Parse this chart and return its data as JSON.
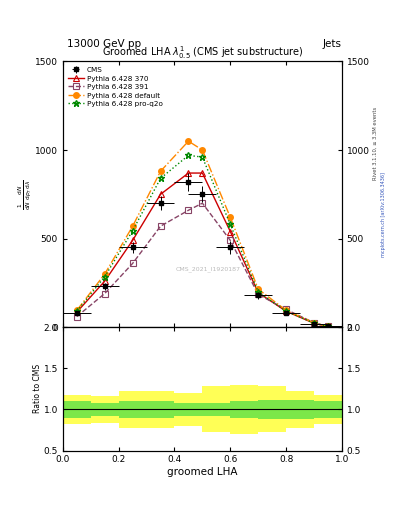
{
  "title": "Groomed LHA $\\lambda^{1}_{0.5}$ (CMS jet substructure)",
  "header_left": "13000 GeV pp",
  "header_right": "Jets",
  "xlabel": "groomed LHA",
  "ylabel_ratio": "Ratio to CMS",
  "watermark": "CMS_2021_I1920187",
  "rivet_label": "Rivet 3.1.10, ≥ 3.3M events",
  "mcplots_label": "mcplots.cern.ch [arXiv:1306.3436]",
  "x_data": [
    0.05,
    0.15,
    0.25,
    0.35,
    0.45,
    0.5,
    0.6,
    0.7,
    0.8,
    0.9,
    0.95
  ],
  "cms_data": [
    80,
    230,
    450,
    700,
    820,
    750,
    450,
    180,
    80,
    20,
    4
  ],
  "cms_xerr": 0.05,
  "cms_yerr": [
    10,
    20,
    30,
    40,
    50,
    45,
    35,
    20,
    10,
    5,
    2
  ],
  "pythia_370": [
    85,
    260,
    490,
    750,
    870,
    870,
    540,
    195,
    90,
    22,
    4
  ],
  "pythia_391": [
    60,
    190,
    360,
    570,
    660,
    700,
    490,
    185,
    100,
    25,
    4
  ],
  "pythia_default": [
    95,
    300,
    570,
    880,
    1050,
    1000,
    620,
    215,
    95,
    25,
    4
  ],
  "pythia_proq2o": [
    90,
    285,
    545,
    840,
    970,
    960,
    580,
    200,
    90,
    23,
    4
  ],
  "ratio_x_edges": [
    0.0,
    0.1,
    0.2,
    0.3,
    0.4,
    0.5,
    0.6,
    0.7,
    0.8,
    0.9,
    1.0
  ],
  "ratio_green_low": [
    0.9,
    0.92,
    0.9,
    0.9,
    0.92,
    0.92,
    0.9,
    0.88,
    0.88,
    0.9
  ],
  "ratio_green_high": [
    1.1,
    1.08,
    1.1,
    1.1,
    1.08,
    1.08,
    1.1,
    1.12,
    1.12,
    1.1
  ],
  "ratio_yellow_low": [
    0.82,
    0.84,
    0.78,
    0.78,
    0.8,
    0.72,
    0.7,
    0.72,
    0.78,
    0.82
  ],
  "ratio_yellow_high": [
    1.18,
    1.16,
    1.22,
    1.22,
    1.2,
    1.28,
    1.3,
    1.28,
    1.22,
    1.18
  ],
  "ylim_main": [
    0,
    1500
  ],
  "ylim_ratio": [
    0.5,
    2.0
  ],
  "yticks_main": [
    0,
    500,
    1000,
    1500
  ],
  "yticks_ratio": [
    0.5,
    1.0,
    1.5,
    2.0
  ],
  "color_cms": "#000000",
  "color_370": "#cc0000",
  "color_391": "#884466",
  "color_default": "#ff8800",
  "color_proq2o": "#008800",
  "background_color": "#ffffff"
}
